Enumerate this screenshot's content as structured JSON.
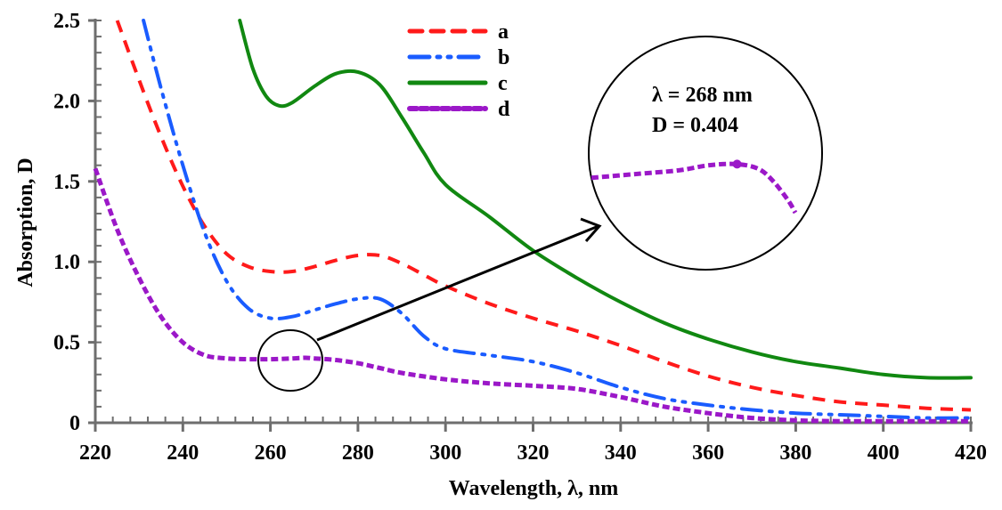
{
  "chart_data": {
    "type": "line",
    "title": "",
    "xlabel": "Wavelength, λ, nm",
    "ylabel": "Absorption, D",
    "xlim": [
      220,
      420
    ],
    "ylim": [
      0,
      2.5
    ],
    "x_ticks": [
      "220",
      "240",
      "260",
      "280",
      "300",
      "320",
      "340",
      "360",
      "380",
      "400",
      "420"
    ],
    "y_ticks": [
      "0",
      "0.5",
      "1.0",
      "1.5",
      "2.0",
      "2.5"
    ],
    "x_tick_values": [
      220,
      240,
      260,
      280,
      300,
      320,
      340,
      360,
      380,
      400,
      420
    ],
    "y_tick_values": [
      0,
      0.5,
      1.0,
      1.5,
      2.0,
      2.5
    ],
    "grid": false,
    "legend_position": "top-center",
    "series": [
      {
        "name": "a",
        "color": "#ff1a1a",
        "style": "dashed",
        "x": [
          225,
          230,
          235,
          240,
          245,
          250,
          255,
          260,
          265,
          270,
          275,
          280,
          285,
          290,
          295,
          300,
          310,
          320,
          330,
          340,
          350,
          360,
          370,
          380,
          390,
          400,
          410,
          420
        ],
        "y": [
          2.5,
          2.13,
          1.78,
          1.47,
          1.22,
          1.05,
          0.97,
          0.94,
          0.94,
          0.97,
          1.01,
          1.04,
          1.04,
          0.99,
          0.92,
          0.85,
          0.74,
          0.65,
          0.57,
          0.48,
          0.38,
          0.29,
          0.22,
          0.17,
          0.13,
          0.11,
          0.09,
          0.08
        ]
      },
      {
        "name": "b",
        "color": "#1a5cff",
        "style": "dash-dot-dot",
        "x": [
          231,
          235,
          240,
          245,
          250,
          255,
          260,
          265,
          270,
          275,
          280,
          285,
          290,
          295,
          300,
          310,
          320,
          330,
          340,
          350,
          360,
          370,
          380,
          390,
          400,
          410,
          420
        ],
        "y": [
          2.5,
          2.08,
          1.6,
          1.18,
          0.88,
          0.71,
          0.65,
          0.66,
          0.7,
          0.74,
          0.77,
          0.77,
          0.68,
          0.54,
          0.46,
          0.42,
          0.38,
          0.31,
          0.22,
          0.15,
          0.11,
          0.08,
          0.06,
          0.05,
          0.04,
          0.03,
          0.03
        ]
      },
      {
        "name": "c",
        "color": "#118811",
        "style": "solid",
        "x": [
          253,
          256,
          259,
          262,
          265,
          270,
          275,
          280,
          285,
          290,
          295,
          300,
          310,
          320,
          330,
          340,
          350,
          360,
          370,
          380,
          390,
          400,
          410,
          420
        ],
        "y": [
          2.5,
          2.2,
          2.03,
          1.97,
          1.99,
          2.09,
          2.17,
          2.18,
          2.1,
          1.9,
          1.68,
          1.48,
          1.28,
          1.07,
          0.9,
          0.75,
          0.62,
          0.52,
          0.44,
          0.38,
          0.34,
          0.3,
          0.28,
          0.28
        ]
      },
      {
        "name": "d",
        "color": "#9b18c8",
        "style": "dotted",
        "x": [
          220,
          225,
          230,
          235,
          240,
          245,
          250,
          255,
          260,
          265,
          268,
          270,
          275,
          280,
          285,
          290,
          300,
          310,
          320,
          330,
          340,
          350,
          360,
          370,
          380,
          390,
          400,
          410,
          420
        ],
        "y": [
          1.58,
          1.2,
          0.9,
          0.66,
          0.5,
          0.42,
          0.4,
          0.395,
          0.395,
          0.4,
          0.404,
          0.4,
          0.39,
          0.37,
          0.34,
          0.31,
          0.27,
          0.245,
          0.23,
          0.21,
          0.16,
          0.1,
          0.06,
          0.03,
          0.015,
          0.01,
          0.01,
          0.01,
          0.01
        ]
      }
    ],
    "annotations": {
      "line1": "λ = 268 nm",
      "line2": "D = 0.404",
      "point": {
        "x": 268,
        "y": 0.404
      },
      "zoom_range": {
        "x": [
          258,
          272
        ],
        "y": [
          0.3,
          0.45
        ]
      }
    }
  }
}
